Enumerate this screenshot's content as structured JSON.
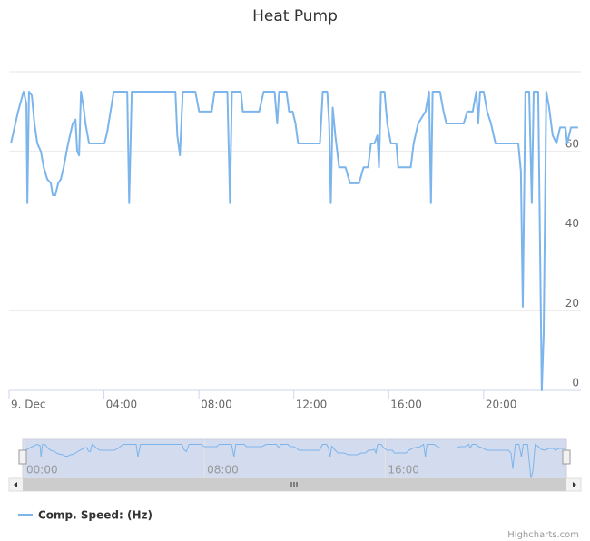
{
  "chart_data": {
    "type": "line",
    "title": "Heat Pump",
    "x": [
      0.08,
      0.19,
      0.38,
      0.61,
      0.73,
      0.77,
      0.84,
      0.96,
      1.07,
      1.19,
      1.34,
      1.46,
      1.61,
      1.76,
      1.84,
      1.95,
      2.07,
      2.18,
      2.3,
      2.49,
      2.68,
      2.8,
      2.87,
      2.95,
      3.03,
      3.14,
      3.22,
      3.37,
      4.02,
      4.14,
      4.41,
      4.98,
      5.06,
      5.17,
      7.01,
      7.09,
      7.2,
      7.32,
      7.85,
      8.01,
      8.54,
      8.66,
      9.2,
      9.31,
      9.39,
      9.77,
      9.85,
      10.54,
      10.73,
      11.19,
      11.3,
      11.38,
      11.69,
      11.8,
      11.95,
      12.07,
      12.18,
      12.36,
      13.1,
      13.22,
      13.41,
      13.49,
      13.56,
      13.64,
      13.75,
      13.91,
      14.18,
      14.37,
      14.75,
      14.94,
      15.13,
      15.25,
      15.4,
      15.52,
      15.59,
      15.67,
      15.82,
      15.94,
      16.09,
      16.32,
      16.4,
      16.93,
      17.05,
      17.24,
      17.55,
      17.7,
      17.78,
      17.85,
      18.16,
      18.31,
      18.43,
      19.16,
      19.31,
      19.54,
      19.69,
      19.77,
      19.85,
      20.0,
      20.15,
      20.31,
      20.5,
      21.46,
      21.57,
      21.65,
      21.76,
      21.92,
      22.03,
      22.11,
      22.3,
      22.45,
      22.53,
      22.64,
      22.76,
      22.91,
      23.07,
      23.22,
      23.45,
      23.52,
      23.68,
      23.98
    ],
    "series": [
      {
        "name": "Comp. Speed: (Hz)",
        "color": "#7cb5ec",
        "values": [
          62,
          65,
          70,
          75,
          72,
          47,
          75,
          74,
          67,
          62,
          60,
          56,
          53,
          52,
          49,
          49,
          52,
          53,
          56,
          62,
          67,
          68,
          60,
          59,
          75,
          71,
          67,
          62,
          62,
          65,
          75,
          75,
          47,
          75,
          75,
          64,
          59,
          75,
          75,
          70,
          70,
          75,
          75,
          47,
          75,
          75,
          70,
          70,
          75,
          75,
          67,
          75,
          75,
          70,
          70,
          67,
          62,
          62,
          62,
          75,
          75,
          67,
          47,
          71,
          64,
          56,
          56,
          52,
          52,
          56,
          56,
          62,
          62,
          64,
          56,
          75,
          75,
          67,
          62,
          62,
          56,
          56,
          62,
          67,
          70,
          75,
          47,
          75,
          75,
          70,
          67,
          67,
          70,
          70,
          75,
          67,
          75,
          75,
          70,
          67,
          62,
          62,
          55,
          21,
          75,
          75,
          47,
          75,
          75,
          0,
          14,
          75,
          71,
          64,
          62,
          66,
          66,
          62,
          66,
          66
        ]
      }
    ],
    "xlim": [
      0,
      24.1
    ],
    "xticks": [
      {
        "value": 0,
        "label": "9. Dec"
      },
      {
        "value": 4,
        "label": "04:00"
      },
      {
        "value": 8,
        "label": "08:00"
      },
      {
        "value": 12,
        "label": "12:00"
      },
      {
        "value": 16,
        "label": "16:00"
      },
      {
        "value": 20,
        "label": "20:00"
      }
    ],
    "ylim": [
      0,
      80
    ],
    "yticks": [
      0,
      20,
      40,
      60
    ],
    "grid": true,
    "navigator": {
      "xticks": [
        {
          "value": 0,
          "label": "00:00"
        },
        {
          "value": 8,
          "label": "08:00"
        },
        {
          "value": 16,
          "label": "16:00"
        }
      ]
    },
    "credits": "Highcharts.com"
  }
}
